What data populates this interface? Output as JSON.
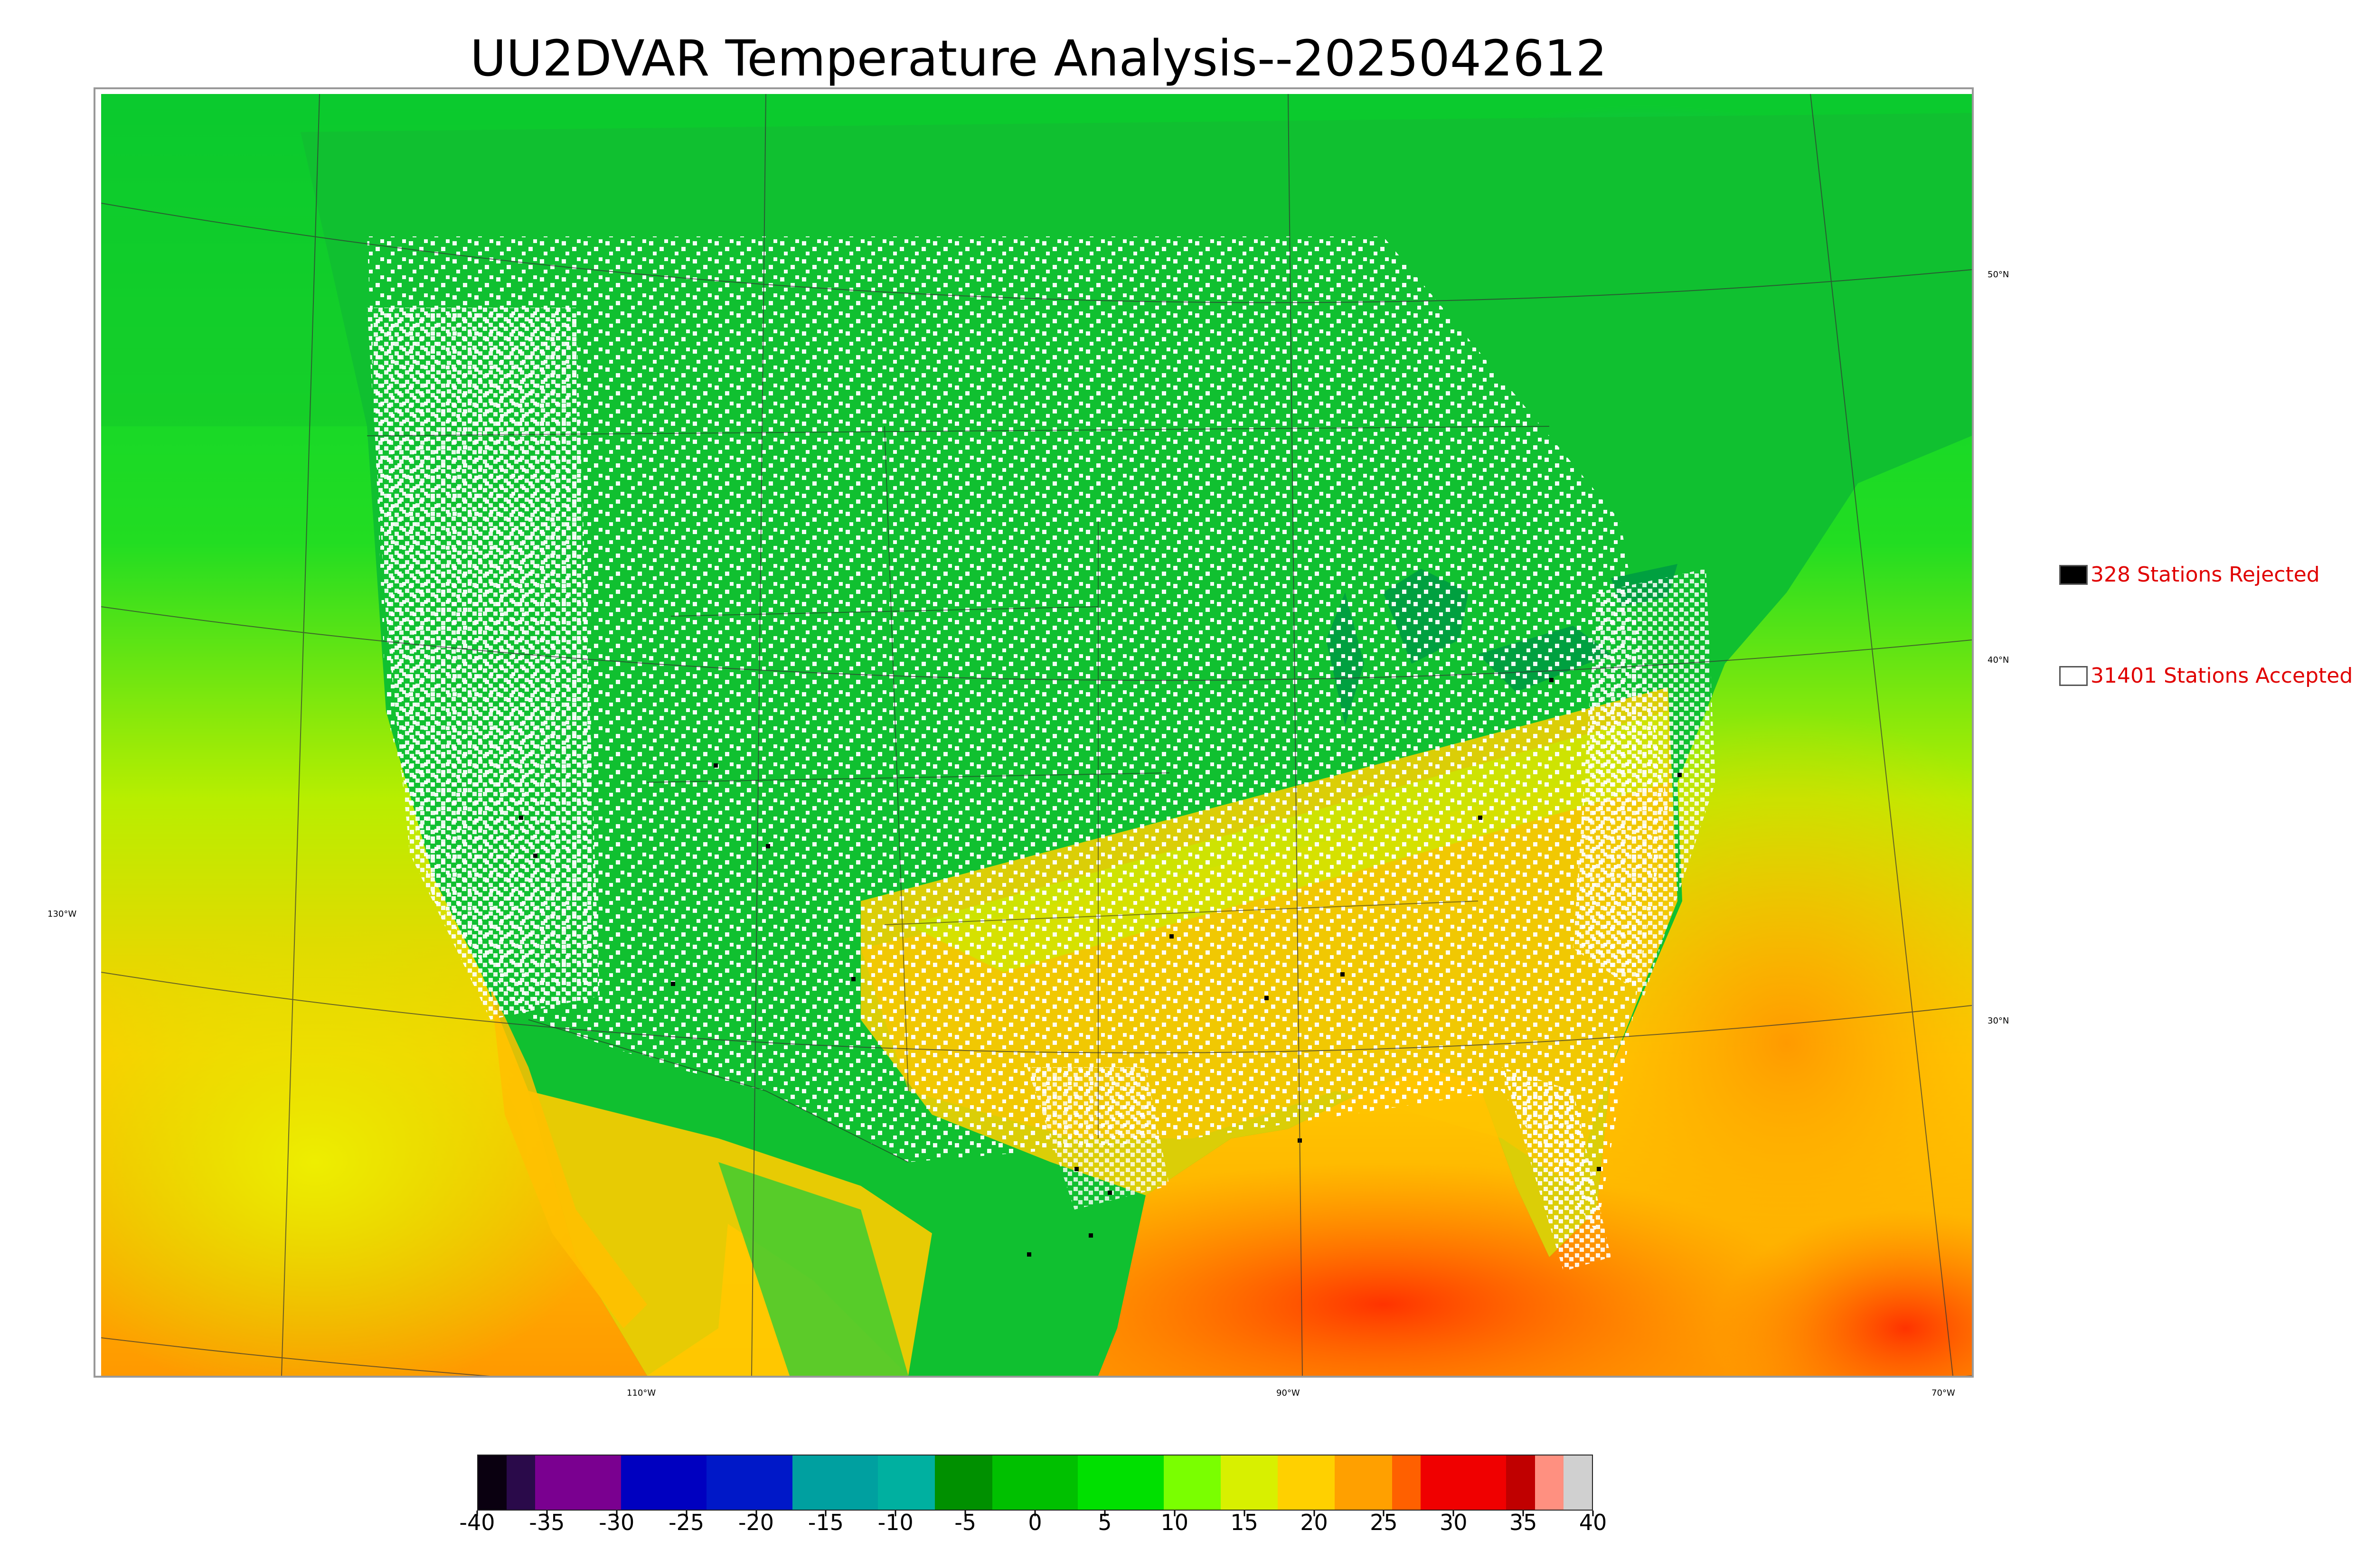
{
  "title": "UU2DVAR Temperature Analysis--2025042612",
  "graticule_labels": {
    "lon_130": "130°W",
    "lon_110": "110°W",
    "lon_90": "90°W",
    "lon_70": "70°W",
    "lat_50": "50°N",
    "lat_40": "40°N",
    "lat_30": "30°N"
  },
  "legend": {
    "rejected": {
      "label": "328 Stations Rejected",
      "swatch_color": "#000000"
    },
    "accepted": {
      "label": "31401 Stations Accepted",
      "swatch_color": "#ffffff"
    }
  },
  "colorbar": {
    "ticks": [
      "-40",
      "-35",
      "-30",
      "-25",
      "-20",
      "-15",
      "-10",
      "-5",
      "0",
      "5",
      "10",
      "15",
      "20",
      "25",
      "30",
      "35",
      "40"
    ],
    "range": [
      -40,
      40
    ],
    "colors": [
      "#0a0010",
      "#2a0a4a",
      "#7a0090",
      "#0000c0",
      "#0018c8",
      "#00a0a0",
      "#00b0a0",
      "#009000",
      "#00c000",
      "#00e000",
      "#7aff00",
      "#d8f000",
      "#ffd000",
      "#ffa000",
      "#ff6000",
      "#f00000",
      "#c00000",
      "#ff9080",
      "#d0d0d0"
    ]
  },
  "text_colors": {
    "legend": "#e00000"
  }
}
